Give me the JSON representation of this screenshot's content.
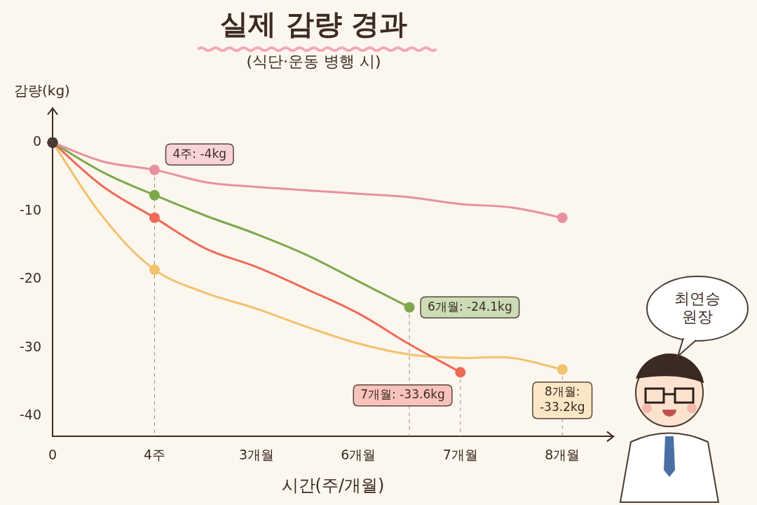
{
  "chart_data": {
    "type": "line",
    "title": "실제 감량 경과",
    "subtitle": "(식단·운동 병행 시)",
    "x_label": "시간(주/개월)",
    "y_label": "감량(kg)",
    "speaker": "최연승 원장",
    "categories": [
      "0",
      null,
      "4주",
      null,
      "3개월",
      null,
      "6개월",
      null,
      "7개월",
      null,
      "8개월",
      null
    ],
    "ylim": [
      -43,
      5
    ],
    "yticks": [
      0,
      -10,
      -20,
      -30,
      -40
    ],
    "grid": false,
    "marker": "circle",
    "series": [
      {
        "color": "#e8919e",
        "values": [
          0,
          -2.8,
          -4,
          -5.8,
          -6.5,
          -7,
          -7.5,
          -8,
          -9,
          -9.5,
          -11,
          null
        ],
        "annotation": {
          "text": "4주: -4kg",
          "point": 2
        }
      },
      {
        "color": "#7ea84c",
        "values": [
          0,
          -4.4,
          -7.7,
          -10.7,
          -13.4,
          -16.5,
          -20.3,
          -24.1,
          null,
          null,
          null,
          null
        ],
        "annotation": {
          "text": "6개월: -24.1kg",
          "point": 7
        }
      },
      {
        "color": "#ee6a58",
        "values": [
          0,
          -6.5,
          -11,
          -15.5,
          -18.2,
          -21.5,
          -25,
          -29.5,
          -33.6,
          null,
          null,
          null
        ],
        "annotation": {
          "text": "7개월: -33.6kg",
          "point": 8
        }
      },
      {
        "color": "#f2c26e",
        "values": [
          0,
          -11,
          -18.6,
          -22,
          -24.3,
          -27,
          -29.4,
          -31,
          -31.5,
          -31.5,
          -33.2,
          null
        ],
        "annotation": {
          "text": "8개월: -33.2kg",
          "point": 10
        }
      }
    ]
  }
}
